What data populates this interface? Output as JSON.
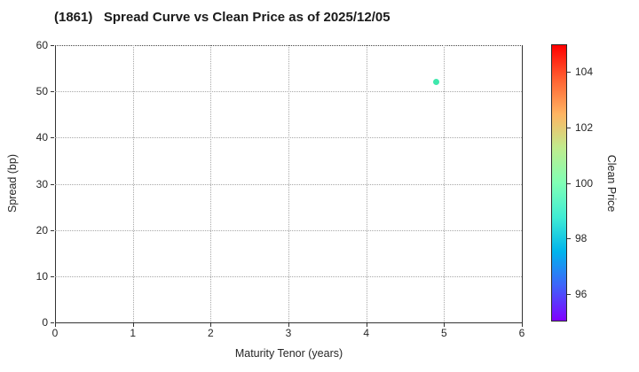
{
  "chart_data": {
    "type": "scatter",
    "title": "(1861)   Spread Curve vs Clean Price as of 2025/12/05",
    "xlabel": "Maturity Tenor (years)",
    "ylabel": "Spread (bp)",
    "xlim": [
      0,
      6
    ],
    "ylim": [
      0,
      60
    ],
    "xticks": [
      0,
      1,
      2,
      3,
      4,
      5,
      6
    ],
    "yticks": [
      0,
      10,
      20,
      30,
      40,
      50,
      60
    ],
    "grid": true,
    "grid_style": "dotted",
    "legend": "none",
    "points": [
      {
        "x": 4.9,
        "y": 52,
        "clean_price": 99.5,
        "color": "#3fe8ad"
      }
    ],
    "colorbar": {
      "label": "Clean Price",
      "range": [
        95,
        105
      ],
      "ticks": [
        96,
        98,
        100,
        102,
        104
      ],
      "colormap": "rainbow",
      "gradient_stops_bottom_to_top": [
        "#8000ff",
        "#4062fa",
        "#00b4ec",
        "#40ecd4",
        "#80ffb5",
        "#bfec8e",
        "#ffb462",
        "#ff6232",
        "#ff0000"
      ]
    },
    "colors": {
      "text": "#1a1a1a",
      "spine": "#333333",
      "grid": "#a8a8a8",
      "background": "#ffffff"
    }
  }
}
